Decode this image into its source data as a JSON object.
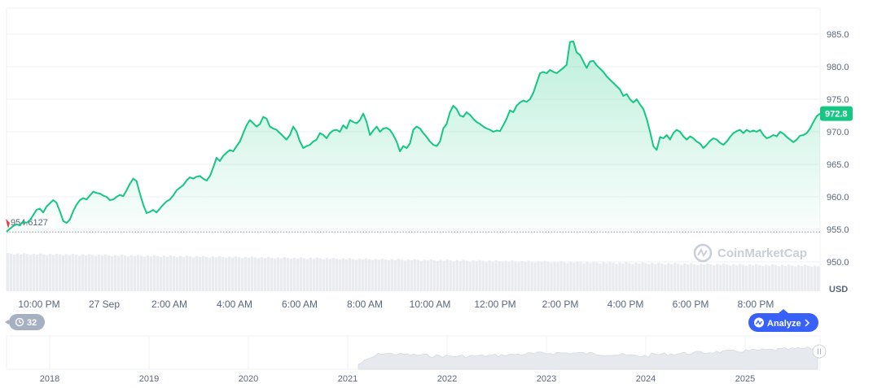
{
  "chart_data": {
    "type": "area",
    "currency_label": "USD",
    "watermark": "CoinMarketCap",
    "ylim": [
      945.5,
      989
    ],
    "y_ticks": [
      {
        "value": 985,
        "label": "985.0"
      },
      {
        "value": 980,
        "label": "980.0"
      },
      {
        "value": 975,
        "label": "975.0"
      },
      {
        "value": 970,
        "label": "970.0"
      },
      {
        "value": 965,
        "label": "965.0"
      },
      {
        "value": 960,
        "label": "960.0"
      },
      {
        "value": 955,
        "label": "955.0"
      },
      {
        "value": 950,
        "label": "950.0"
      }
    ],
    "x_ticks": [
      "10:00 PM",
      "27 Sep",
      "2:00 AM",
      "4:00 AM",
      "6:00 AM",
      "8:00 AM",
      "10:00 AM",
      "12:00 PM",
      "2:00 PM",
      "4:00 PM",
      "6:00 PM",
      "8:00 PM"
    ],
    "reference_value": "954.6127",
    "current_value": "972.8",
    "series": [
      {
        "values": [
          954.6,
          955.1,
          955.5,
          955.8,
          955.6,
          956.2,
          956.0,
          956.4,
          957.2,
          958.0,
          958.2,
          957.6,
          958.5,
          959.0,
          959.5,
          959.1,
          957.8,
          956.3,
          956.0,
          956.5,
          957.8,
          958.8,
          959.5,
          959.8,
          959.6,
          960.2,
          960.8,
          960.6,
          960.5,
          960.2,
          960.0,
          959.5,
          959.6,
          960.0,
          960.3,
          960.1,
          961.0,
          962.0,
          962.8,
          962.4,
          960.5,
          958.8,
          957.5,
          957.7,
          958.0,
          957.6,
          958.2,
          958.8,
          959.3,
          959.6,
          960.2,
          961.0,
          961.4,
          961.8,
          962.5,
          963.0,
          962.8,
          963.1,
          963.2,
          962.8,
          962.5,
          963.2,
          964.5,
          966.0,
          965.5,
          966.3,
          966.8,
          967.2,
          967.0,
          967.8,
          968.5,
          969.8,
          971.0,
          971.8,
          971.3,
          970.8,
          971.2,
          972.3,
          972.0,
          970.8,
          970.5,
          970.3,
          969.8,
          969.3,
          968.8,
          969.5,
          970.8,
          970.0,
          968.5,
          967.5,
          967.8,
          968.0,
          968.5,
          968.8,
          969.8,
          969.5,
          969.0,
          969.8,
          970.2,
          970.3,
          970.0,
          971.0,
          970.5,
          971.8,
          971.5,
          971.3,
          971.8,
          972.8,
          971.5,
          969.5,
          970.2,
          970.8,
          970.0,
          970.5,
          970.6,
          970.3,
          969.5,
          968.5,
          967.0,
          967.8,
          967.5,
          968.2,
          970.3,
          970.8,
          970.5,
          969.8,
          969.2,
          968.5,
          968.0,
          967.8,
          968.5,
          970.5,
          971.2,
          973.0,
          974.0,
          973.5,
          972.5,
          972.3,
          973.0,
          972.6,
          972.0,
          971.5,
          971.2,
          970.8,
          970.5,
          970.3,
          970.0,
          970.2,
          970.1,
          971.0,
          972.0,
          973.3,
          973.0,
          974.0,
          974.5,
          974.8,
          974.6,
          975.0,
          976.0,
          977.5,
          979.0,
          979.2,
          979.0,
          979.5,
          979.2,
          979.0,
          979.4,
          979.8,
          980.3,
          983.8,
          983.9,
          982.2,
          981.8,
          980.8,
          979.8,
          980.8,
          980.9,
          980.2,
          979.7,
          979.2,
          978.5,
          978.0,
          977.5,
          977.0,
          976.5,
          975.5,
          975.8,
          975.0,
          974.5,
          975.0,
          974.2,
          973.5,
          972.0,
          970.0,
          967.8,
          967.2,
          969.2,
          969.0,
          969.5,
          968.8,
          969.8,
          970.3,
          970.0,
          969.3,
          968.8,
          969.3,
          969.0,
          968.5,
          968.2,
          967.5,
          968.0,
          968.6,
          969.0,
          968.8,
          968.3,
          968.0,
          968.5,
          969.2,
          969.8,
          970.1,
          970.3,
          969.8,
          970.3,
          970.0,
          970.2,
          970.0,
          970.3,
          969.5,
          969.0,
          969.2,
          969.5,
          969.3,
          970.0,
          969.7,
          969.2,
          968.8,
          968.4,
          968.8,
          969.4,
          969.5,
          969.8,
          970.5,
          971.5,
          972.4,
          972.8
        ]
      }
    ],
    "volume_note": "light gray volume histogram along the bottom of the main plot",
    "navigator": {
      "x_ticks": [
        "2018",
        "2019",
        "2020",
        "2021",
        "2022",
        "2023",
        "2024",
        "2025"
      ]
    }
  },
  "ui": {
    "events_count": "32",
    "analyze_label": "Analyze",
    "colors": {
      "line": "#16c784",
      "badge": "#16c784",
      "analyze": "#3861fb",
      "events_pill": "#a6b0c3",
      "reference_marker": "#ea3943"
    },
    "icons": [
      "history-icon",
      "analyze-logo-icon",
      "chevron-right-icon",
      "coinmarketcap-logo-icon",
      "navigator-handle-icon"
    ]
  }
}
